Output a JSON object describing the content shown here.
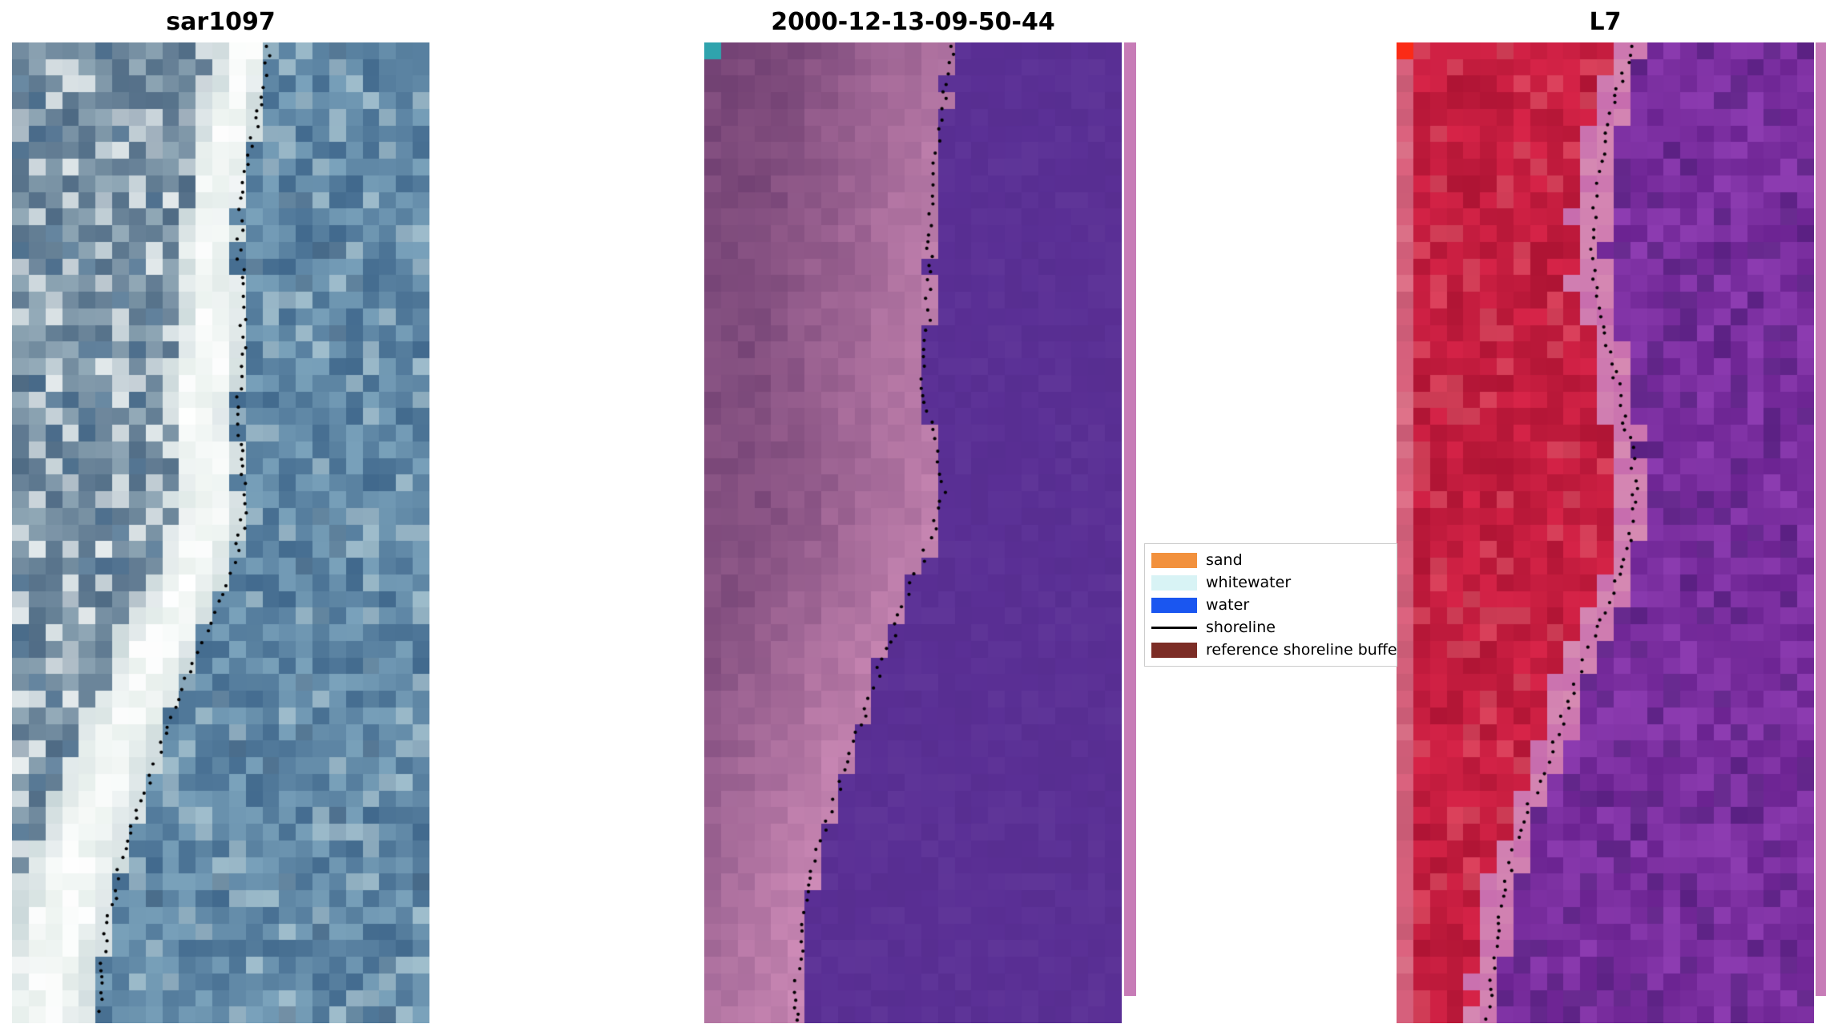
{
  "figure": {
    "background": "#ffffff"
  },
  "chart_data": {
    "type": "scatter",
    "title": "",
    "description": "Three-panel shoreline detection figure: a SAR image, a classified optical image and a Landsat 7 image, each overlaid with detected shoreline points (black dots). Shoreline coordinates are normalised panel fractions [y, x].",
    "panels": [
      {
        "title": "sar1097",
        "image_kind": "sar",
        "seed": 11,
        "shoreline": [
          [
            0.0,
            0.615
          ],
          [
            0.05,
            0.6
          ],
          [
            0.1,
            0.575
          ],
          [
            0.15,
            0.555
          ],
          [
            0.2,
            0.545
          ],
          [
            0.25,
            0.55
          ],
          [
            0.3,
            0.555
          ],
          [
            0.35,
            0.545
          ],
          [
            0.38,
            0.535
          ],
          [
            0.42,
            0.55
          ],
          [
            0.46,
            0.56
          ],
          [
            0.5,
            0.55
          ],
          [
            0.55,
            0.515
          ],
          [
            0.6,
            0.465
          ],
          [
            0.65,
            0.415
          ],
          [
            0.7,
            0.37
          ],
          [
            0.75,
            0.33
          ],
          [
            0.8,
            0.29
          ],
          [
            0.85,
            0.255
          ],
          [
            0.9,
            0.23
          ],
          [
            0.95,
            0.215
          ],
          [
            1.0,
            0.205
          ]
        ],
        "palette": {
          "water_dark": "#41698d",
          "water_light": "#7aa2bb",
          "water_pale": "#b8d0d8",
          "band_low": "#dce8e3",
          "band_high": "#ffffff",
          "land_dark": "#4e6a84",
          "land_light": "#93aab8",
          "land_white": "#ecf1f1"
        }
      },
      {
        "title": "2000-12-13-09-50-44",
        "image_kind": "classification",
        "seed": 22,
        "shoreline": [
          [
            0.0,
            0.6
          ],
          [
            0.05,
            0.575
          ],
          [
            0.1,
            0.56
          ],
          [
            0.15,
            0.55
          ],
          [
            0.2,
            0.54
          ],
          [
            0.25,
            0.535
          ],
          [
            0.3,
            0.535
          ],
          [
            0.35,
            0.525
          ],
          [
            0.4,
            0.545
          ],
          [
            0.45,
            0.575
          ],
          [
            0.5,
            0.55
          ],
          [
            0.55,
            0.5
          ],
          [
            0.6,
            0.455
          ],
          [
            0.65,
            0.41
          ],
          [
            0.7,
            0.37
          ],
          [
            0.75,
            0.33
          ],
          [
            0.8,
            0.29
          ],
          [
            0.85,
            0.255
          ],
          [
            0.9,
            0.235
          ],
          [
            0.95,
            0.225
          ],
          [
            1.0,
            0.22
          ]
        ],
        "palette": {
          "land_dark": "#6e3e70",
          "land_light": "#cf8cb8",
          "water": "#5a2f95",
          "corner": "#2fa3ad",
          "strip": "#c77cb7"
        }
      },
      {
        "title": "L7",
        "image_kind": "landsat",
        "seed": 33,
        "shoreline": [
          [
            0.0,
            0.565
          ],
          [
            0.05,
            0.53
          ],
          [
            0.1,
            0.5
          ],
          [
            0.15,
            0.48
          ],
          [
            0.2,
            0.47
          ],
          [
            0.25,
            0.475
          ],
          [
            0.3,
            0.5
          ],
          [
            0.35,
            0.53
          ],
          [
            0.4,
            0.555
          ],
          [
            0.45,
            0.575
          ],
          [
            0.5,
            0.565
          ],
          [
            0.55,
            0.525
          ],
          [
            0.6,
            0.475
          ],
          [
            0.65,
            0.43
          ],
          [
            0.7,
            0.39
          ],
          [
            0.75,
            0.345
          ],
          [
            0.8,
            0.3
          ],
          [
            0.85,
            0.265
          ],
          [
            0.9,
            0.245
          ],
          [
            0.95,
            0.23
          ],
          [
            1.0,
            0.22
          ]
        ],
        "palette": {
          "land_dark": "#af1434",
          "land_light": "#d72448",
          "land_pale": "#e25f70",
          "edge_light": "#e2a2b6",
          "transition": "#c76cae",
          "water_dark": "#6b2391",
          "water_light": "#8d3cb1",
          "water_deep": "#4c1d76",
          "corner": "#fb2b16",
          "strip": "#c77cb7"
        }
      }
    ],
    "legend": {
      "position": "center-right",
      "border_color": "#cccccc",
      "items": [
        {
          "label": "sand",
          "swatch": "rect",
          "color": "#f2913d"
        },
        {
          "label": "whitewater",
          "swatch": "rect",
          "color": "#d8f3f5"
        },
        {
          "label": "water",
          "swatch": "rect",
          "color": "#1a56f0"
        },
        {
          "label": "shoreline",
          "swatch": "line",
          "color": "#000000"
        },
        {
          "label": "reference shoreline buffer",
          "swatch": "rect",
          "color": "#7c2d26"
        }
      ]
    }
  }
}
